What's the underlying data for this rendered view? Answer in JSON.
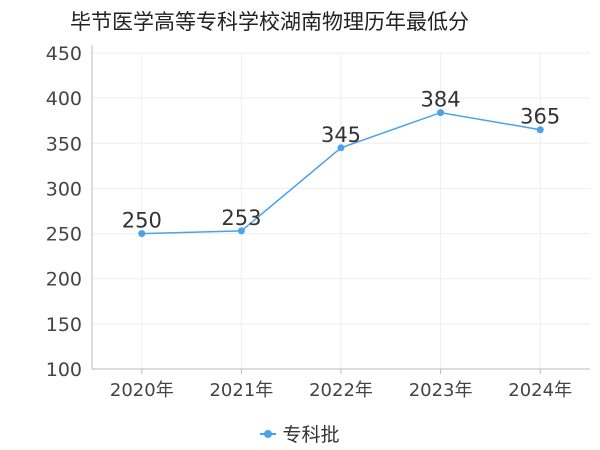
{
  "chart_data": {
    "type": "line",
    "title": "毕节医学高等专科学校湖南物理历年最低分",
    "categories": [
      "2020年",
      "2021年",
      "2022年",
      "2023年",
      "2024年"
    ],
    "series": [
      {
        "name": "专科批",
        "values": [
          250,
          253,
          345,
          384,
          365
        ],
        "color": "#4aa3ea"
      }
    ],
    "ylim": [
      100,
      450
    ],
    "yticks": [
      100,
      150,
      200,
      250,
      300,
      350,
      400,
      450
    ],
    "grid": true,
    "legend_position": "bottom-center",
    "data_labels": true
  }
}
